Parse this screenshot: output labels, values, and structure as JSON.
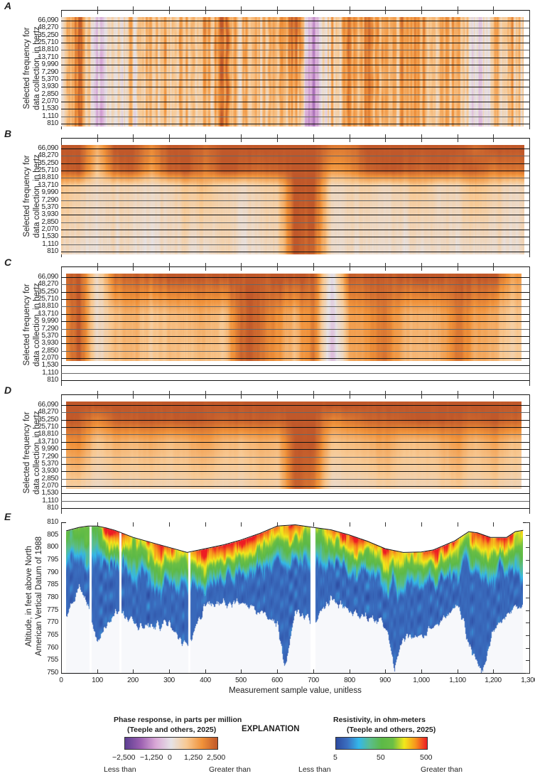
{
  "figure": {
    "panel_labels": [
      "A",
      "B",
      "C",
      "D",
      "E"
    ],
    "freq_axis_title": [
      "Selected frequency for",
      "data collection, in hertz"
    ],
    "alt_axis_title": [
      "Altitude, in feet above North",
      "American Vertical Datum of 1988"
    ],
    "x_axis_title": "Measurement sample value, unitless",
    "x_tick_labels": [
      "0",
      "100",
      "200",
      "300",
      "400",
      "500",
      "600",
      "700",
      "800",
      "900",
      "1,000",
      "1,100",
      "1,200",
      "1,300"
    ],
    "frequencies_hz": [
      "66,090",
      "48,270",
      "35,250",
      "25,710",
      "18,810",
      "13,710",
      "9,990",
      "7,290",
      "5,370",
      "3,930",
      "2,850",
      "2,070",
      "1,530",
      "1,110",
      "810"
    ],
    "altitude_tick_labels": [
      "810",
      "805",
      "800",
      "795",
      "790",
      "785",
      "780",
      "775",
      "770",
      "765",
      "760",
      "755",
      "750"
    ]
  },
  "legend": {
    "title": "EXPLANATION",
    "phase": {
      "title": "Phase response, in parts per million",
      "source": "(Teeple and others, 2025)",
      "ticks": [
        "−2,500",
        "−1,250",
        "0",
        "1,250",
        "2,500"
      ],
      "less": "Less than",
      "greater": "Greater than",
      "colors": [
        "#5d3f92",
        "#9b5fb0",
        "#d9a8d6",
        "#e6e3e6",
        "#f8c993",
        "#f0923a",
        "#c0582a"
      ]
    },
    "resistivity": {
      "title": "Resistivity, in ohm-meters",
      "source": "(Teeple and others, 2025)",
      "ticks": [
        "5",
        "50",
        "500"
      ],
      "less": "Less than",
      "greater": "Greater than",
      "colors": [
        "#2d4aa0",
        "#3b6fc0",
        "#33b7ea",
        "#5bbd8c",
        "#5cb947",
        "#6bbf45",
        "#f2e81b",
        "#f7941d",
        "#ed1c24"
      ]
    }
  },
  "chart_data": [
    {
      "panel": "A",
      "type": "heatmap",
      "xlim": [
        0,
        1300
      ],
      "value_range": [
        -2500,
        2500
      ],
      "units": "parts per million",
      "x_extent": [
        0,
        1285
      ],
      "last_frequency_with_data": "810",
      "x": [
        0,
        50,
        100,
        150,
        200,
        250,
        300,
        350,
        400,
        450,
        500,
        550,
        600,
        650,
        700,
        750,
        800,
        850,
        900,
        950,
        1000,
        1050,
        1100,
        1150,
        1200,
        1250,
        1300
      ],
      "profiles": {
        "66,090": [
          300,
          2000,
          -400,
          400,
          800,
          1200,
          700,
          1000,
          1100,
          2200,
          1000,
          700,
          1200,
          2500,
          -1200,
          1000,
          1500,
          2000,
          900,
          1500,
          1600,
          1100,
          1300,
          -300,
          900,
          1200,
          500
        ],
        "810": [
          200,
          1800,
          -600,
          200,
          500,
          900,
          500,
          800,
          700,
          2000,
          800,
          500,
          900,
          1200,
          -1500,
          800,
          1200,
          1800,
          700,
          1200,
          1400,
          900,
          1000,
          -500,
          600,
          900,
          300
        ]
      }
    },
    {
      "panel": "B",
      "type": "heatmap",
      "xlim": [
        0,
        1300
      ],
      "value_range": [
        -2500,
        2500
      ],
      "units": "parts per million",
      "x_extent": [
        0,
        1287
      ],
      "last_frequency_with_data": "810",
      "x": [
        0,
        50,
        100,
        150,
        200,
        250,
        300,
        350,
        400,
        450,
        500,
        550,
        600,
        650,
        700,
        750,
        800,
        850,
        900,
        950,
        1000,
        1050,
        1100,
        1150,
        1200,
        1250,
        1300
      ],
      "profiles": {
        "66,090": [
          2500,
          2500,
          1200,
          2500,
          2500,
          1800,
          2500,
          2500,
          2200,
          2500,
          2500,
          2500,
          2500,
          2500,
          2500,
          2000,
          2000,
          2500,
          2500,
          2500,
          2500,
          2500,
          2500,
          2200,
          2500,
          2500,
          2500
        ],
        "25,710": [
          2300,
          2500,
          900,
          2200,
          2400,
          1500,
          2400,
          2500,
          2000,
          2500,
          2400,
          2200,
          2300,
          2500,
          2500,
          1500,
          1700,
          2300,
          2500,
          2400,
          2300,
          2400,
          2200,
          2400,
          2000,
          2100,
          2000
        ],
        "13,710": [
          900,
          700,
          400,
          500,
          500,
          400,
          500,
          800,
          1000,
          500,
          400,
          600,
          700,
          2500,
          2500,
          400,
          500,
          600,
          400,
          600,
          900,
          400,
          500,
          1000,
          700,
          400,
          400
        ],
        "810": [
          400,
          300,
          200,
          300,
          300,
          200,
          400,
          300,
          300,
          500,
          200,
          300,
          400,
          2500,
          2200,
          300,
          300,
          200,
          300,
          200,
          300,
          300,
          200,
          300,
          300,
          200,
          300
        ]
      }
    },
    {
      "panel": "C",
      "type": "heatmap",
      "xlim": [
        0,
        1300
      ],
      "value_range": [
        -2500,
        2500
      ],
      "units": "parts per million",
      "x_extent": [
        14,
        1279
      ],
      "last_frequency_with_data": "2,070",
      "x": [
        0,
        50,
        100,
        150,
        200,
        250,
        300,
        350,
        400,
        450,
        500,
        550,
        600,
        650,
        700,
        750,
        800,
        850,
        900,
        950,
        1000,
        1050,
        1100,
        1150,
        1200,
        1250,
        1300
      ],
      "profiles": {
        "66,090": [
          2000,
          2500,
          200,
          2200,
          2300,
          2300,
          2500,
          2500,
          2500,
          2500,
          2500,
          2500,
          2500,
          2500,
          2500,
          -300,
          2300,
          2400,
          2500,
          2500,
          2500,
          2500,
          2500,
          2500,
          2500,
          1500,
          1800
        ],
        "13,710": [
          1400,
          2500,
          100,
          1100,
          1200,
          900,
          1000,
          1100,
          1300,
          900,
          2300,
          2300,
          1600,
          1200,
          2000,
          -500,
          1400,
          1600,
          2100,
          1300,
          1100,
          1300,
          2000,
          1500,
          1300,
          800,
          1200
        ],
        "2,070": [
          1300,
          2500,
          200,
          1100,
          1100,
          800,
          1000,
          900,
          1100,
          800,
          2400,
          2200,
          1500,
          1000,
          2200,
          -700,
          1300,
          1500,
          2200,
          1200,
          1000,
          1200,
          2100,
          1300,
          1200,
          700,
          1100
        ]
      }
    },
    {
      "panel": "D",
      "type": "heatmap",
      "xlim": [
        0,
        1300
      ],
      "value_range": [
        -2500,
        2500
      ],
      "units": "parts per million",
      "x_extent": [
        14,
        1279
      ],
      "last_frequency_with_data": "2,070",
      "x": [
        0,
        50,
        100,
        150,
        200,
        250,
        300,
        350,
        400,
        450,
        500,
        550,
        600,
        650,
        700,
        750,
        800,
        850,
        900,
        950,
        1000,
        1050,
        1100,
        1150,
        1200,
        1250,
        1300
      ],
      "profiles": {
        "66,090": [
          2500,
          2500,
          2500,
          2500,
          2500,
          2500,
          2500,
          2500,
          2500,
          2500,
          2500,
          2500,
          2500,
          2500,
          2500,
          2500,
          2500,
          2500,
          2500,
          2500,
          2500,
          2500,
          2500,
          2500,
          2500,
          2500,
          2500
        ],
        "35,250": [
          2500,
          2400,
          1800,
          2300,
          2400,
          2500,
          2400,
          2500,
          2500,
          2300,
          2400,
          2400,
          2300,
          2500,
          2500,
          1800,
          2000,
          2300,
          2300,
          2400,
          2500,
          2500,
          2400,
          2300,
          2500,
          2300,
          2300
        ],
        "13,710": [
          1500,
          1800,
          800,
          1200,
          1100,
          1300,
          1000,
          1200,
          1500,
          1100,
          1000,
          1200,
          1100,
          2500,
          2500,
          900,
          1000,
          1200,
          1400,
          1000,
          1000,
          1200,
          1500,
          1000,
          1400,
          1000,
          1000
        ],
        "2,070": [
          600,
          700,
          300,
          500,
          500,
          600,
          500,
          600,
          700,
          500,
          500,
          700,
          600,
          2400,
          2000,
          300,
          400,
          500,
          700,
          500,
          500,
          600,
          800,
          500,
          700,
          500,
          500
        ]
      }
    },
    {
      "panel": "E",
      "type": "heatmap",
      "xlim": [
        0,
        1300
      ],
      "ylim": [
        750,
        810
      ],
      "units": "ohm-meters",
      "value_range": [
        5,
        500
      ],
      "color_scale": "log",
      "x_extent": [
        14,
        1283
      ],
      "surface_altitude": {
        "x": [
          14,
          50,
          75,
          100,
          125,
          150,
          200,
          250,
          300,
          350,
          400,
          450,
          500,
          550,
          600,
          650,
          700,
          750,
          800,
          850,
          900,
          950,
          1000,
          1033,
          1093,
          1132,
          1156,
          1192,
          1237,
          1261,
          1283
        ],
        "altitude": [
          806.6,
          808,
          808.5,
          808.5,
          807.8,
          806.8,
          804,
          802,
          800,
          798,
          799.5,
          801,
          803,
          805.5,
          808.5,
          809,
          808,
          807,
          805,
          802.5,
          799.5,
          798,
          798.2,
          799,
          802.6,
          806.3,
          805.8,
          804,
          804,
          806.3,
          806.8
        ]
      },
      "data_bottom_altitude": {
        "x": [
          14,
          50,
          75,
          100,
          150,
          200,
          250,
          300,
          350,
          400,
          450,
          500,
          550,
          600,
          620,
          650,
          700,
          750,
          800,
          850,
          900,
          925,
          950,
          1000,
          1050,
          1100,
          1140,
          1170,
          1200,
          1250,
          1283
        ],
        "altitude": [
          772,
          785,
          776,
          762,
          775,
          770,
          768,
          770,
          760,
          778,
          778,
          778,
          775,
          770,
          752,
          775,
          770,
          780,
          775,
          772,
          770,
          750,
          765,
          765,
          770,
          778,
          758,
          750,
          768,
          775,
          778
        ]
      },
      "near_surface_resistivity": {
        "x": [
          14,
          50,
          100,
          130,
          150,
          200,
          250,
          280,
          300,
          340,
          400,
          450,
          500,
          550,
          600,
          650,
          680,
          720,
          780,
          820,
          860,
          900,
          950,
          1000,
          1030,
          1060,
          1100,
          1130,
          1160,
          1200,
          1230,
          1283
        ],
        "ohm_m": [
          60,
          80,
          50,
          500,
          500,
          120,
          200,
          500,
          300,
          100,
          500,
          500,
          500,
          500,
          250,
          400,
          150,
          100,
          500,
          500,
          250,
          400,
          150,
          300,
          500,
          500,
          200,
          120,
          500,
          300,
          500,
          120
        ]
      },
      "deep_resistivity_ohm_m": 8,
      "no_data_gaps": [
        [
          78,
          84
        ],
        [
          160,
          166
        ],
        [
          352,
          358
        ],
        [
          692,
          706
        ]
      ]
    }
  ]
}
